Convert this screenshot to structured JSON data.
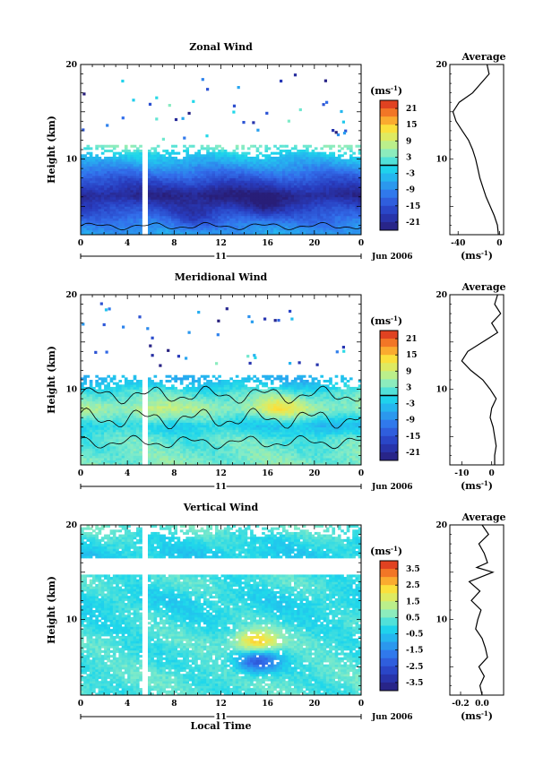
{
  "chart_data": [
    {
      "type": "heatmap",
      "title": "Zonal Wind",
      "ylabel": "Height (km)",
      "xlabel": "",
      "y_ticks": [
        "20",
        "10"
      ],
      "x_ticks": [
        "0",
        "4",
        "8",
        "12",
        "16",
        "20",
        "0"
      ],
      "day_label": "11",
      "date_label": "Jun 2006",
      "xlim": [
        0,
        24
      ],
      "ylim": [
        2,
        20
      ],
      "colorbar": {
        "unit_label": "(ms",
        "unit_sup": "-1",
        "tick_labels": [
          "21",
          "15",
          "9",
          "3",
          "-3",
          "-9",
          "-15",
          "-21"
        ],
        "range": [
          -24,
          24
        ]
      },
      "data_top_km": 11.5,
      "gap_hour": 5.5,
      "field": {
        "base": [
          -6,
          -10,
          -16,
          -22,
          -14,
          -6,
          -2,
          2,
          3
        ],
        "base_heights": [
          2,
          3.2,
          4.8,
          6.2,
          8,
          9.6,
          10.6,
          11.2,
          11.5
        ],
        "bands": [
          {
            "t": 12,
            "h": 6,
            "amp": -4
          },
          {
            "t": 15.5,
            "h": 5,
            "amp": -6
          },
          {
            "t": 9.5,
            "h": 3.8,
            "amp": -5
          }
        ]
      },
      "contours": [
        {
          "level": 0,
          "base_km": 2.9,
          "amp_km": 0.25
        }
      ],
      "profile": {
        "title": "Average",
        "y_ticks": [
          "20",
          "10"
        ],
        "x_ticks": [
          "-40",
          "0"
        ],
        "xlim": [
          -48,
          4
        ],
        "xlabel": "(ms",
        "xlabel_sup": "-1",
        "points": [
          [
            -1,
            2
          ],
          [
            -2,
            3
          ],
          [
            -5,
            4
          ],
          [
            -9,
            5
          ],
          [
            -13,
            6
          ],
          [
            -16,
            7
          ],
          [
            -19,
            8
          ],
          [
            -21,
            9
          ],
          [
            -23,
            10
          ],
          [
            -26,
            11
          ],
          [
            -30,
            12
          ],
          [
            -36,
            13
          ],
          [
            -42,
            14
          ],
          [
            -45,
            15
          ],
          [
            -39,
            16
          ],
          [
            -26,
            17
          ],
          [
            -18,
            18
          ],
          [
            -10,
            19
          ],
          [
            -12,
            20
          ]
        ]
      }
    },
    {
      "type": "heatmap",
      "title": "Meridional Wind",
      "ylabel": "Height (km)",
      "xlabel": "",
      "y_ticks": [
        "20",
        "10"
      ],
      "x_ticks": [
        "0",
        "4",
        "8",
        "12",
        "16",
        "20",
        "0"
      ],
      "day_label": "11",
      "date_label": "Jun 2006",
      "xlim": [
        0,
        24
      ],
      "ylim": [
        2,
        20
      ],
      "colorbar": {
        "unit_label": "(ms",
        "unit_sup": "-1",
        "tick_labels": [
          "21",
          "15",
          "9",
          "3",
          "-3",
          "-9",
          "-15",
          "-21"
        ],
        "range": [
          -24,
          24
        ]
      },
      "data_top_km": 11.5,
      "gap_hour": 5.5,
      "field": {
        "base": [
          4,
          3,
          2,
          -2,
          6,
          2,
          -3,
          -6,
          -4
        ],
        "base_heights": [
          2,
          3.2,
          4.8,
          6.2,
          8,
          9.6,
          10.6,
          11.2,
          11.5
        ],
        "bands": [
          {
            "t": 17,
            "h": 8,
            "amp": 6
          },
          {
            "t": 6,
            "h": 7,
            "amp": 4
          },
          {
            "t": 21,
            "h": 6,
            "amp": -4
          }
        ]
      },
      "contours": [
        {
          "level": 0,
          "base_km": 9.4,
          "amp_km": 0.6
        },
        {
          "level": 0,
          "base_km": 6.9,
          "amp_km": 0.7
        },
        {
          "level": 0,
          "base_km": 4.4,
          "amp_km": 0.45
        }
      ],
      "profile": {
        "title": "Average",
        "y_ticks": [
          "20",
          "10"
        ],
        "x_ticks": [
          "-10",
          "0"
        ],
        "xlim": [
          -14,
          4
        ],
        "xlabel": "(ms",
        "xlabel_sup": "-1",
        "points": [
          [
            1,
            2
          ],
          [
            1,
            3
          ],
          [
            1.5,
            4
          ],
          [
            1,
            5
          ],
          [
            0.5,
            6
          ],
          [
            -0.5,
            7
          ],
          [
            0,
            8
          ],
          [
            1.5,
            9
          ],
          [
            -0.5,
            10
          ],
          [
            -3,
            11
          ],
          [
            -7,
            12
          ],
          [
            -10,
            13
          ],
          [
            -8,
            14
          ],
          [
            -3,
            15
          ],
          [
            2,
            16
          ],
          [
            0,
            17
          ],
          [
            3,
            18
          ],
          [
            1,
            19
          ],
          [
            2,
            20
          ]
        ]
      }
    },
    {
      "type": "heatmap",
      "title": "Vertical Wind",
      "ylabel": "Height (km)",
      "xlabel": "Local Time",
      "y_ticks": [
        "20",
        "10"
      ],
      "x_ticks": [
        "0",
        "4",
        "8",
        "12",
        "16",
        "20",
        "0"
      ],
      "day_label": "11",
      "date_label": "Jun 2006",
      "xlim": [
        0,
        24
      ],
      "ylim": [
        2,
        20
      ],
      "colorbar": {
        "unit_label": "(ms",
        "unit_sup": "-1",
        "tick_labels": [
          "3.5",
          "2.5",
          "1.5",
          "0.5",
          "-0.5",
          "-1.5",
          "-2.5",
          "-3.5"
        ],
        "range": [
          -4,
          4
        ]
      },
      "data_top_km": 20,
      "gap_hour": 5.5,
      "blank_band_km": [
        14.8,
        16.6
      ],
      "field": {
        "base": [
          0.2,
          0.3,
          0.1,
          0.2,
          0.0,
          -0.2,
          0.2,
          -0.3,
          0.3
        ],
        "base_heights": [
          2,
          4,
          6,
          8,
          10,
          12,
          14,
          17,
          20
        ],
        "bands": [
          {
            "t": 15,
            "h": 7.6,
            "amp": 2.4
          },
          {
            "t": 15.1,
            "h": 5.6,
            "amp": -2.5
          }
        ]
      },
      "contours": [],
      "profile": {
        "title": "Average",
        "y_ticks": [
          "20",
          "10"
        ],
        "x_ticks": [
          "-0.2",
          "0.0"
        ],
        "xlim": [
          -0.3,
          0.2
        ],
        "xlabel": "(ms",
        "xlabel_sup": "-1",
        "points": [
          [
            0.0,
            2
          ],
          [
            -0.02,
            3
          ],
          [
            0.02,
            4
          ],
          [
            -0.03,
            5
          ],
          [
            0.05,
            6
          ],
          [
            0.03,
            7
          ],
          [
            0.0,
            8
          ],
          [
            -0.06,
            9
          ],
          [
            -0.04,
            10
          ],
          [
            -0.01,
            11
          ],
          [
            -0.1,
            12
          ],
          [
            -0.02,
            13
          ],
          [
            -0.12,
            14
          ],
          [
            0.1,
            15
          ],
          [
            -0.05,
            15.5
          ],
          [
            0.05,
            16
          ],
          [
            0.02,
            17
          ],
          [
            -0.03,
            18
          ],
          [
            0.06,
            19
          ],
          [
            0.0,
            20
          ]
        ]
      }
    }
  ]
}
